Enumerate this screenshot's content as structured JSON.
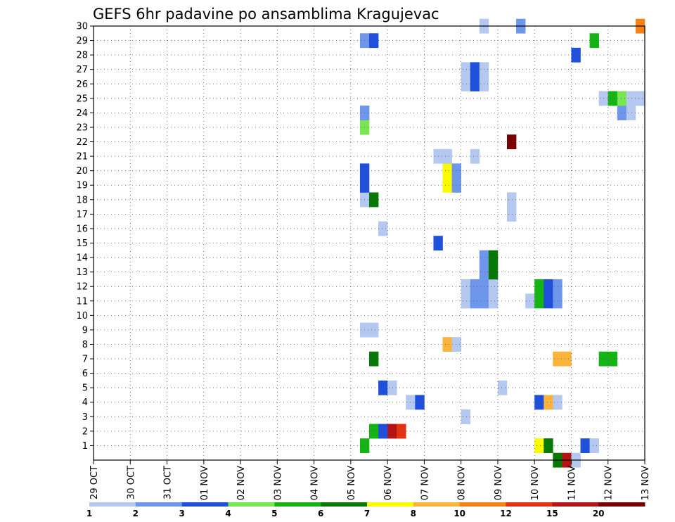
{
  "chart_data": {
    "type": "heatmap",
    "title": "GEFS 6hr padavine po ansamblima Kragujevac",
    "y_members": [
      1,
      2,
      3,
      4,
      5,
      6,
      7,
      8,
      9,
      10,
      11,
      12,
      13,
      14,
      15,
      16,
      17,
      18,
      19,
      20,
      21,
      22,
      23,
      24,
      25,
      26,
      27,
      28,
      29,
      30
    ],
    "x_tick_labels": [
      "29 OCT",
      "30 OCT",
      "31 OCT",
      "01 NOV",
      "02 NOV",
      "03 NOV",
      "04 NOV",
      "05 NOV",
      "06 NOV",
      "07 NOV",
      "08 NOV",
      "09 NOV",
      "10 NOV",
      "11 NOV",
      "12 NOV",
      "13 NOV"
    ],
    "x_unit": "6h steps from 29 OCT 00Z (day = 4 steps)",
    "color_scale": {
      "boundaries": [
        "1",
        "2",
        "3",
        "4",
        "5",
        "6",
        "7",
        "8",
        "10",
        "12",
        "15",
        "20"
      ],
      "colors": [
        "#b4c8f0",
        "#6e96eb",
        "#1e50dc",
        "#78e650",
        "#14b414",
        "#057805",
        "#fafa00",
        "#fab43c",
        "#f58214",
        "#e63214",
        "#b41414",
        "#780000"
      ]
    },
    "cells": [
      {
        "member": 1,
        "step": 29,
        "cls": 5
      },
      {
        "member": 1,
        "step": 48,
        "cls": 7
      },
      {
        "member": 1,
        "step": 49,
        "cls": 6
      },
      {
        "member": 1,
        "step": 53,
        "cls": 3
      },
      {
        "member": 1,
        "step": 54,
        "cls": 1
      },
      {
        "member": 0,
        "step": 50,
        "cls": 6
      },
      {
        "member": 0,
        "step": 51,
        "cls": 11
      },
      {
        "member": 0,
        "step": 52,
        "cls": 1
      },
      {
        "member": 2,
        "step": 30,
        "cls": 5
      },
      {
        "member": 2,
        "step": 31,
        "cls": 3
      },
      {
        "member": 2,
        "step": 32,
        "cls": 11
      },
      {
        "member": 2,
        "step": 33,
        "cls": 10
      },
      {
        "member": 3,
        "step": 40,
        "cls": 1
      },
      {
        "member": 4,
        "step": 34,
        "cls": 1
      },
      {
        "member": 4,
        "step": 35,
        "cls": 3
      },
      {
        "member": 4,
        "step": 48,
        "cls": 3
      },
      {
        "member": 4,
        "step": 49,
        "cls": 8
      },
      {
        "member": 4,
        "step": 50,
        "cls": 1
      },
      {
        "member": 5,
        "step": 31,
        "cls": 3
      },
      {
        "member": 5,
        "step": 32,
        "cls": 1
      },
      {
        "member": 5,
        "step": 44,
        "cls": 1
      },
      {
        "member": 7,
        "step": 30,
        "cls": 6
      },
      {
        "member": 7,
        "step": 50,
        "cls": 8
      },
      {
        "member": 7,
        "step": 51,
        "cls": 8
      },
      {
        "member": 7,
        "step": 55,
        "cls": 5
      },
      {
        "member": 7,
        "step": 56,
        "cls": 5
      },
      {
        "member": 8,
        "step": 38,
        "cls": 8
      },
      {
        "member": 8,
        "step": 39,
        "cls": 1
      },
      {
        "member": 9,
        "step": 29,
        "cls": 1
      },
      {
        "member": 9,
        "step": 30,
        "cls": 1
      },
      {
        "member": 11,
        "step": 40,
        "cls": 1
      },
      {
        "member": 11,
        "step": 41,
        "cls": 2
      },
      {
        "member": 11,
        "step": 42,
        "cls": 2
      },
      {
        "member": 11,
        "step": 43,
        "cls": 1
      },
      {
        "member": 11,
        "step": 47,
        "cls": 1
      },
      {
        "member": 11,
        "step": 48,
        "cls": 5
      },
      {
        "member": 11,
        "step": 49,
        "cls": 3
      },
      {
        "member": 11,
        "step": 50,
        "cls": 2
      },
      {
        "member": 12,
        "step": 40,
        "cls": 1
      },
      {
        "member": 12,
        "step": 41,
        "cls": 2
      },
      {
        "member": 12,
        "step": 42,
        "cls": 2
      },
      {
        "member": 12,
        "step": 43,
        "cls": 1
      },
      {
        "member": 12,
        "step": 48,
        "cls": 5
      },
      {
        "member": 12,
        "step": 49,
        "cls": 3
      },
      {
        "member": 12,
        "step": 50,
        "cls": 2
      },
      {
        "member": 13,
        "step": 42,
        "cls": 2
      },
      {
        "member": 13,
        "step": 43,
        "cls": 6
      },
      {
        "member": 14,
        "step": 42,
        "cls": 2
      },
      {
        "member": 14,
        "step": 43,
        "cls": 6
      },
      {
        "member": 15,
        "step": 37,
        "cls": 3
      },
      {
        "member": 16,
        "step": 31,
        "cls": 1
      },
      {
        "member": 17,
        "step": 45,
        "cls": 1
      },
      {
        "member": 18,
        "step": 29,
        "cls": 1
      },
      {
        "member": 18,
        "step": 30,
        "cls": 6
      },
      {
        "member": 18,
        "step": 45,
        "cls": 1
      },
      {
        "member": 19,
        "step": 29,
        "cls": 3
      },
      {
        "member": 19,
        "step": 38,
        "cls": 7
      },
      {
        "member": 19,
        "step": 39,
        "cls": 2
      },
      {
        "member": 20,
        "step": 29,
        "cls": 3
      },
      {
        "member": 20,
        "step": 38,
        "cls": 7
      },
      {
        "member": 20,
        "step": 39,
        "cls": 2
      },
      {
        "member": 21,
        "step": 37,
        "cls": 1
      },
      {
        "member": 21,
        "step": 38,
        "cls": 1
      },
      {
        "member": 21,
        "step": 41,
        "cls": 1
      },
      {
        "member": 22,
        "step": 45,
        "cls": 12
      },
      {
        "member": 23,
        "step": 29,
        "cls": 4
      },
      {
        "member": 24,
        "step": 29,
        "cls": 2
      },
      {
        "member": 24,
        "step": 57,
        "cls": 2
      },
      {
        "member": 24,
        "step": 58,
        "cls": 1
      },
      {
        "member": 25,
        "step": 55,
        "cls": 1
      },
      {
        "member": 25,
        "step": 56,
        "cls": 5
      },
      {
        "member": 25,
        "step": 57,
        "cls": 4
      },
      {
        "member": 25,
        "step": 58,
        "cls": 1
      },
      {
        "member": 25,
        "step": 59,
        "cls": 1
      },
      {
        "member": 27,
        "step": 40,
        "cls": 1
      },
      {
        "member": 27,
        "step": 41,
        "cls": 3
      },
      {
        "member": 27,
        "step": 42,
        "cls": 1
      },
      {
        "member": 26,
        "step": 40,
        "cls": 1
      },
      {
        "member": 26,
        "step": 41,
        "cls": 3
      },
      {
        "member": 26,
        "step": 42,
        "cls": 1
      },
      {
        "member": 28,
        "step": 52,
        "cls": 3
      },
      {
        "member": 29,
        "step": 29,
        "cls": 2
      },
      {
        "member": 29,
        "step": 30,
        "cls": 3
      },
      {
        "member": 29,
        "step": 54,
        "cls": 5
      },
      {
        "member": 30,
        "step": 42,
        "cls": 1
      },
      {
        "member": 30,
        "step": 46,
        "cls": 2
      },
      {
        "member": 30,
        "step": 59,
        "cls": 9
      }
    ]
  }
}
